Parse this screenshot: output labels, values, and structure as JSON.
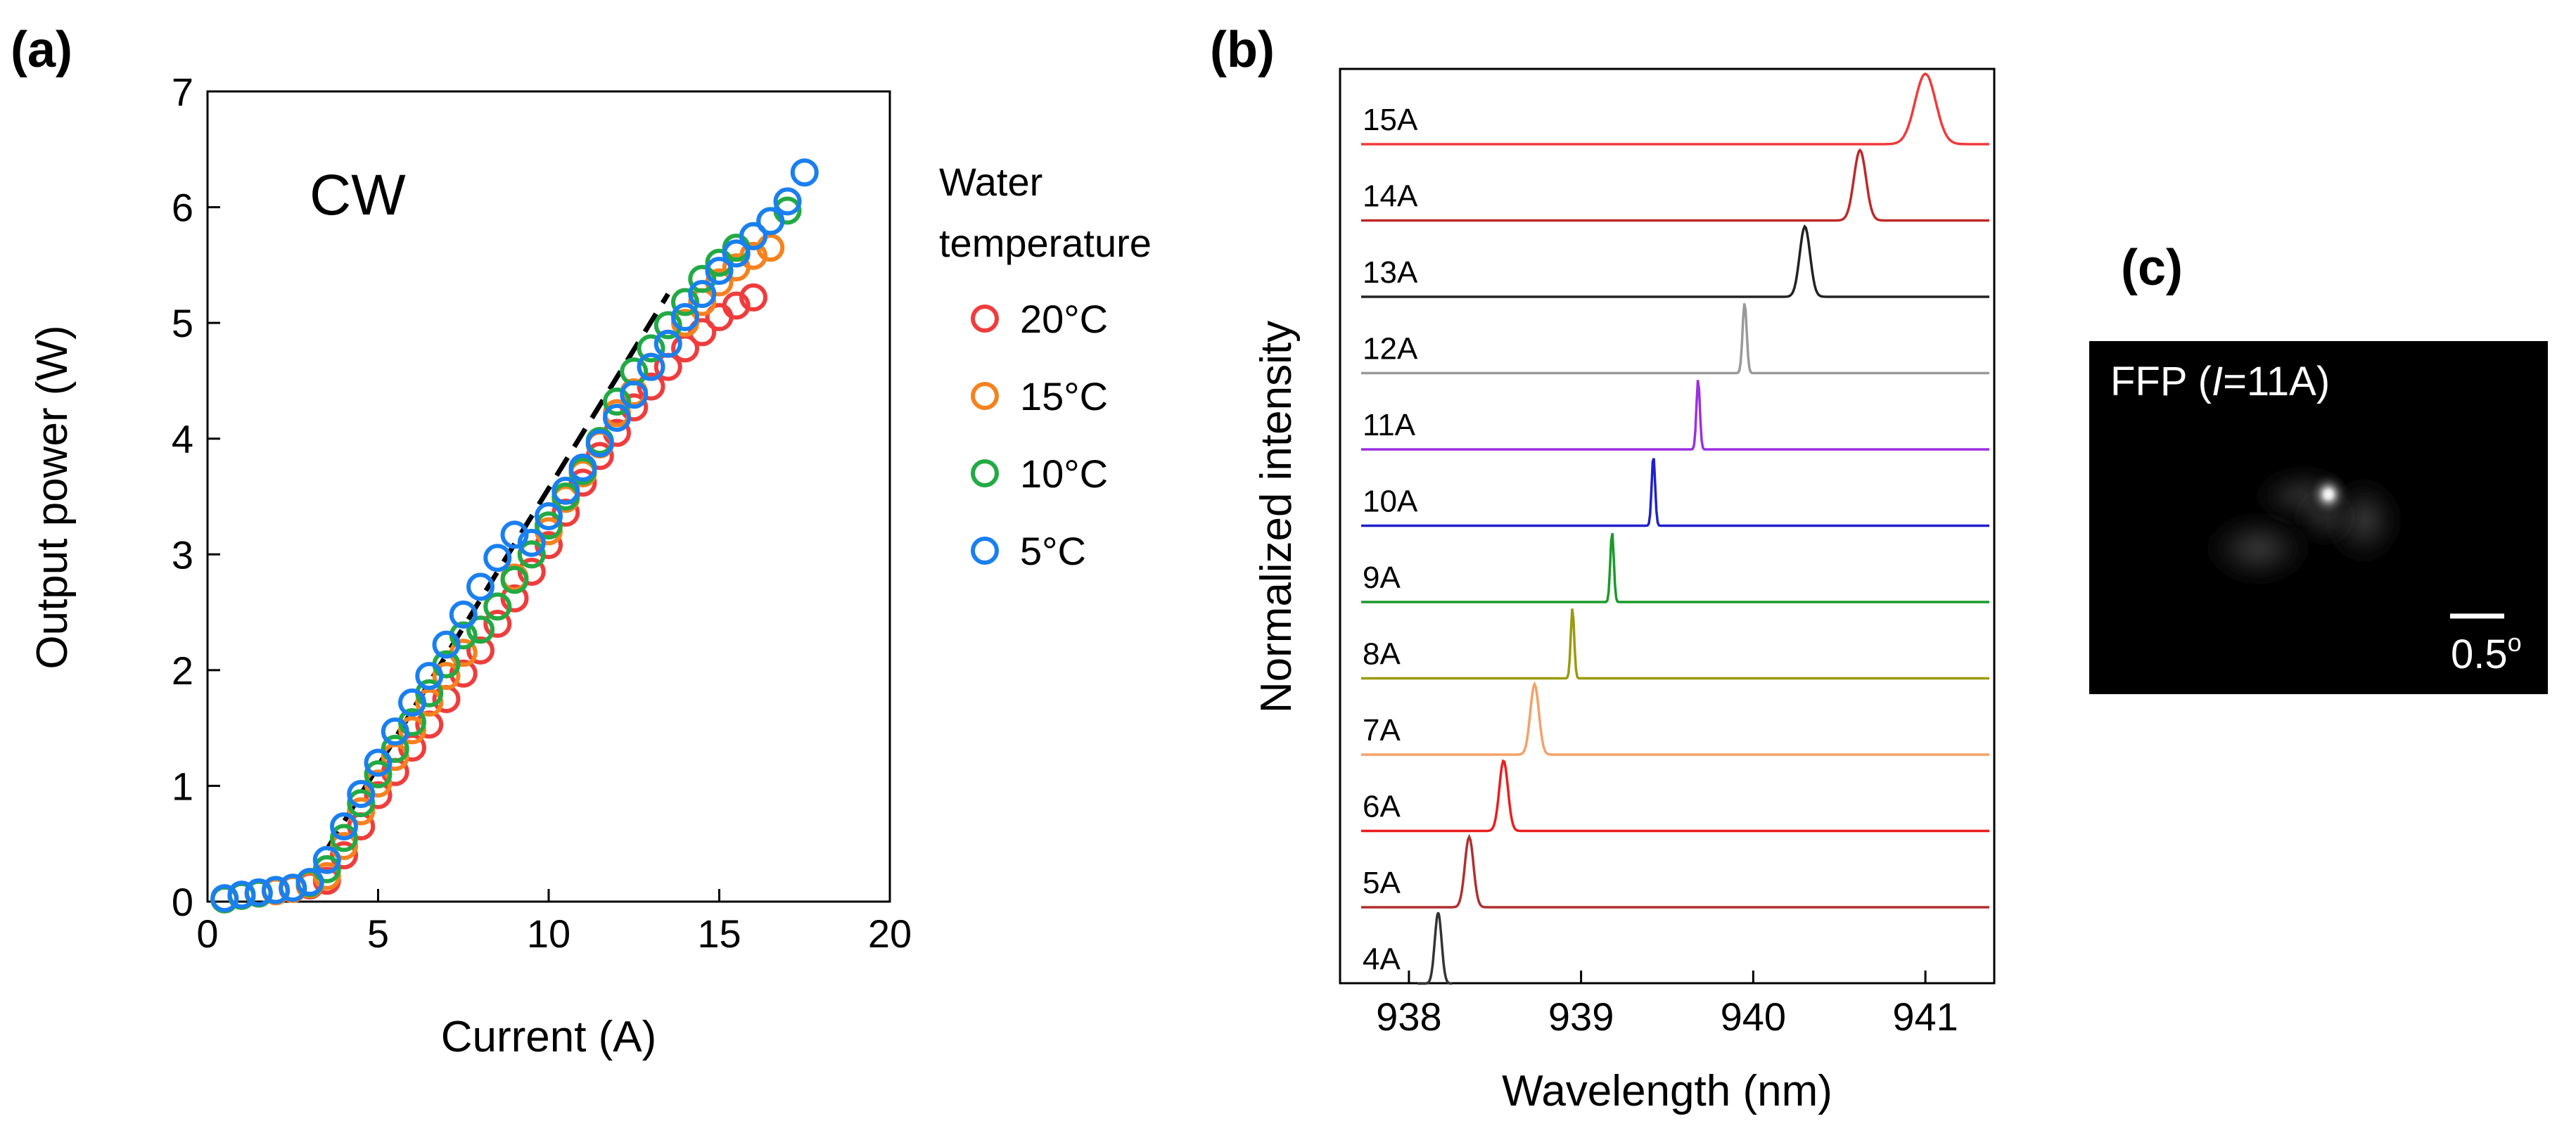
{
  "chart_data": [
    {
      "panel": "(a)",
      "type": "scatter",
      "title": "",
      "annotation": "CW",
      "xlabel": "Current (A)",
      "ylabel": "Output power (W)",
      "xlim": [
        0,
        20
      ],
      "ylim": [
        0,
        7
      ],
      "xticks": [
        "0",
        "5",
        "10",
        "15",
        "20"
      ],
      "yticks": [
        "0",
        "1",
        "2",
        "3",
        "4",
        "5",
        "6",
        "7"
      ],
      "legend_title_lines": [
        "Water",
        "temperature"
      ],
      "fit_line": {
        "style": "dashed",
        "color": "#000000",
        "x": [
          3.5,
          13.5
        ],
        "y": [
          0.45,
          5.25
        ]
      },
      "series": [
        {
          "name": "20°C",
          "color": "#f03c3c",
          "x": [
            0.5,
            1.0,
            1.5,
            2.0,
            2.5,
            3.0,
            3.5,
            4.0,
            4.5,
            5.0,
            5.5,
            6.0,
            6.5,
            7.0,
            7.5,
            8.0,
            8.5,
            9.0,
            9.5,
            10.0,
            10.5,
            11.0,
            11.5,
            12.0,
            12.5,
            13.0,
            13.5,
            14.0,
            14.5,
            15.0,
            15.5,
            16.0
          ],
          "y": [
            0.02,
            0.05,
            0.07,
            0.09,
            0.11,
            0.14,
            0.18,
            0.4,
            0.65,
            0.92,
            1.12,
            1.33,
            1.53,
            1.75,
            1.97,
            2.17,
            2.4,
            2.62,
            2.85,
            3.08,
            3.36,
            3.62,
            3.85,
            4.05,
            4.27,
            4.45,
            4.62,
            4.78,
            4.92,
            5.05,
            5.15,
            5.22
          ]
        },
        {
          "name": "15°C",
          "color": "#f5821e",
          "x": [
            0.5,
            1.0,
            1.5,
            2.0,
            2.5,
            3.0,
            3.5,
            4.0,
            4.5,
            5.0,
            5.5,
            6.0,
            6.5,
            7.0,
            7.5,
            8.0,
            8.5,
            9.0,
            9.5,
            10.0,
            10.5,
            11.0,
            11.5,
            12.0,
            12.5,
            13.0,
            13.5,
            14.0,
            14.5,
            15.0,
            15.5,
            16.0,
            16.5
          ],
          "y": [
            0.02,
            0.05,
            0.07,
            0.09,
            0.11,
            0.15,
            0.22,
            0.48,
            0.78,
            1.02,
            1.25,
            1.48,
            1.72,
            1.95,
            2.15,
            2.35,
            2.55,
            2.8,
            3.0,
            3.2,
            3.48,
            3.7,
            3.95,
            4.22,
            4.4,
            4.62,
            4.82,
            5.0,
            5.18,
            5.35,
            5.48,
            5.58,
            5.65
          ]
        },
        {
          "name": "10°C",
          "color": "#22aa44",
          "x": [
            0.5,
            1.0,
            1.5,
            2.0,
            2.5,
            3.0,
            3.5,
            4.0,
            4.5,
            5.0,
            5.5,
            6.0,
            6.5,
            7.0,
            7.5,
            8.0,
            8.5,
            9.0,
            9.5,
            10.0,
            10.5,
            11.0,
            11.5,
            12.0,
            12.5,
            13.0,
            13.5,
            14.0,
            14.5,
            15.0,
            15.5,
            16.0,
            16.5,
            17.0
          ],
          "y": [
            0.02,
            0.05,
            0.07,
            0.1,
            0.12,
            0.16,
            0.28,
            0.55,
            0.85,
            1.1,
            1.32,
            1.55,
            1.8,
            2.05,
            2.3,
            2.35,
            2.55,
            2.78,
            3.0,
            3.25,
            3.5,
            3.72,
            3.98,
            4.32,
            4.58,
            4.78,
            4.98,
            5.18,
            5.38,
            5.52,
            5.65,
            5.75,
            5.88,
            5.97
          ]
        },
        {
          "name": "5°C",
          "color": "#1a7ff0",
          "x": [
            0.5,
            1.0,
            1.5,
            2.0,
            2.5,
            3.0,
            3.5,
            4.0,
            4.5,
            5.0,
            5.5,
            6.0,
            6.5,
            7.0,
            7.5,
            8.0,
            8.5,
            9.0,
            9.5,
            10.0,
            10.5,
            11.0,
            11.5,
            12.0,
            12.5,
            13.0,
            13.5,
            14.0,
            14.5,
            15.0,
            15.5,
            16.0,
            16.5,
            17.0,
            17.5
          ],
          "y": [
            0.03,
            0.06,
            0.08,
            0.1,
            0.12,
            0.17,
            0.36,
            0.65,
            0.93,
            1.2,
            1.47,
            1.72,
            1.95,
            2.22,
            2.48,
            2.72,
            2.97,
            3.17,
            3.1,
            3.33,
            3.55,
            3.75,
            3.96,
            4.18,
            4.38,
            4.62,
            4.82,
            5.05,
            5.25,
            5.45,
            5.6,
            5.75,
            5.88,
            6.05,
            6.3
          ]
        }
      ]
    },
    {
      "panel": "(b)",
      "type": "line",
      "title": "",
      "xlabel": "Wavelength (nm)",
      "ylabel": "Normalized intensity",
      "xlim": [
        937.6,
        941.4
      ],
      "xticks": [
        "938",
        "939",
        "940",
        "941"
      ],
      "series": [
        {
          "name": "4A",
          "color": "#333333",
          "peak": 938.17,
          "width": 0.02
        },
        {
          "name": "5A",
          "color": "#b03030",
          "peak": 938.35,
          "width": 0.025
        },
        {
          "name": "6A",
          "color": "#ee1c1c",
          "peak": 938.55,
          "width": 0.025
        },
        {
          "name": "7A",
          "color": "#f5a066",
          "peak": 938.73,
          "width": 0.025
        },
        {
          "name": "8A",
          "color": "#9a9a10",
          "peak": 938.95,
          "width": 0.01
        },
        {
          "name": "9A",
          "color": "#1a9a2a",
          "peak": 939.18,
          "width": 0.01
        },
        {
          "name": "10A",
          "color": "#2020cc",
          "peak": 939.42,
          "width": 0.01
        },
        {
          "name": "11A",
          "color": "#9b30e0",
          "peak": 939.68,
          "width": 0.01
        },
        {
          "name": "12A",
          "color": "#999999",
          "peak": 939.95,
          "width": 0.012
        },
        {
          "name": "13A",
          "color": "#222222",
          "peak": 940.3,
          "width": 0.03
        },
        {
          "name": "14A",
          "color": "#c02828",
          "peak": 940.62,
          "width": 0.035
        },
        {
          "name": "15A",
          "color": "#f03a3a",
          "peak": 941.0,
          "width": 0.06
        }
      ]
    }
  ],
  "ffp": {
    "panel": "(c)",
    "label_prefix": "FFP (",
    "label_italic": "I",
    "label_suffix": "=11A)",
    "scale_bar": "0.5",
    "scale_unit": "o"
  }
}
